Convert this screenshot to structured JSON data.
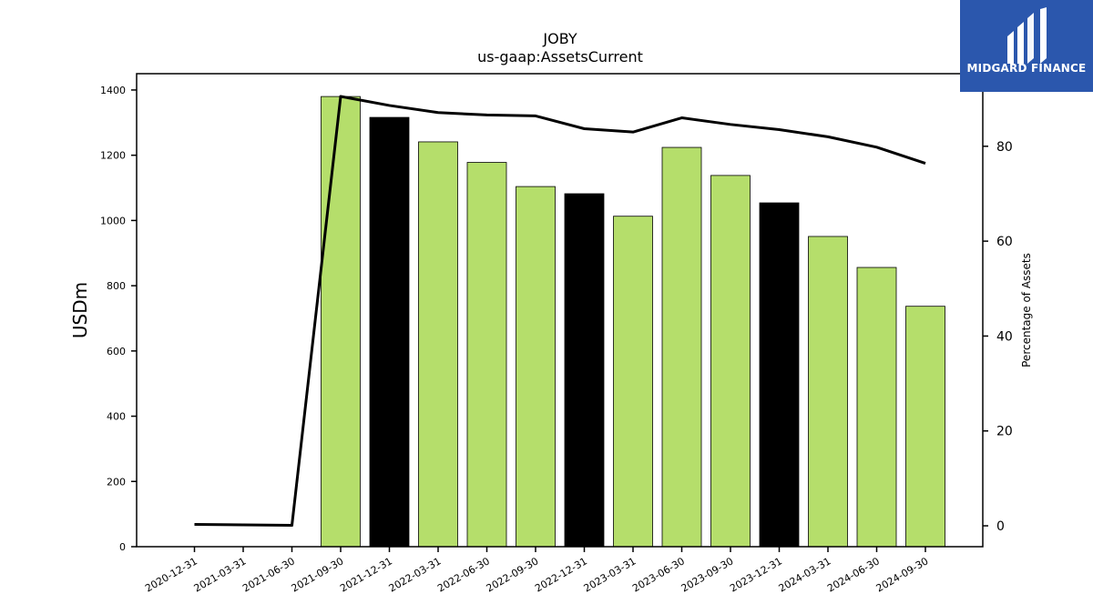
{
  "logo": {
    "text": "MIDGARD FINANCE",
    "background": "#2b57ad"
  },
  "chart_data": {
    "type": "bar",
    "title": "JOBY",
    "subtitle": "us-gaap:AssetsCurrent",
    "ylabel": "USDm",
    "y2label": "Percentage of Assets",
    "categories": [
      "2020-12-31",
      "2021-03-31",
      "2021-06-30",
      "2021-09-30",
      "2021-12-31",
      "2022-03-31",
      "2022-06-30",
      "2022-09-30",
      "2022-12-31",
      "2023-03-31",
      "2023-06-30",
      "2023-09-30",
      "2023-12-31",
      "2024-03-31",
      "2024-06-30",
      "2024-09-30"
    ],
    "series": [
      {
        "values": [
          null,
          null,
          null,
          1380,
          1316,
          1241,
          1178,
          1104,
          1082,
          1013,
          1224,
          1138,
          1054,
          951,
          856,
          737
        ]
      },
      {
        "axis": "right",
        "values": [
          0.3,
          0.2,
          0.1,
          90.5,
          88.6,
          87.1,
          86.6,
          86.4,
          83.7,
          83.0,
          86.0,
          84.6,
          83.5,
          82.0,
          79.8,
          76.4
        ]
      }
    ],
    "bar_colors": [
      "#b5de6b",
      "#b5de6b",
      "#b5de6b",
      "#b5de6b",
      "#000000",
      "#b5de6b",
      "#b5de6b",
      "#b5de6b",
      "#000000",
      "#b5de6b",
      "#b5de6b",
      "#b5de6b",
      "#000000",
      "#b5de6b",
      "#b5de6b",
      "#b5de6b"
    ],
    "line_color": "#000000",
    "ylim": [
      0,
      1450
    ],
    "y2lim": [
      -4.4,
      95.3
    ],
    "yticks": [
      0,
      200,
      400,
      600,
      800,
      1000,
      1200,
      1400
    ],
    "y2ticks": [
      0,
      20,
      40,
      60,
      80
    ],
    "grid": false,
    "legend": "none"
  }
}
